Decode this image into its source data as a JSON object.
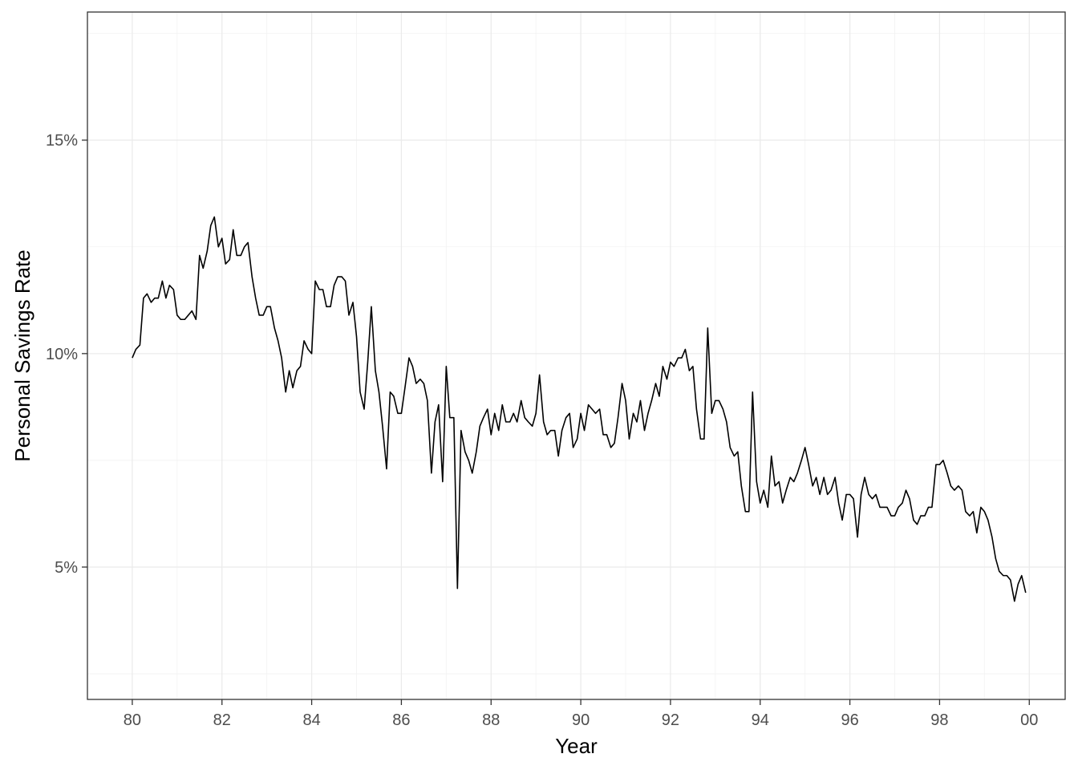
{
  "chart_data": {
    "type": "line",
    "title": "",
    "xlabel": "Year",
    "ylabel": "Personal Savings Rate",
    "xlim": [
      1979.0,
      2000.8
    ],
    "ylim": [
      1.9,
      18.0
    ],
    "grid": true,
    "legend": "none",
    "x_ticks": [
      {
        "value": 1980,
        "label": "80"
      },
      {
        "value": 1982,
        "label": "82"
      },
      {
        "value": 1984,
        "label": "84"
      },
      {
        "value": 1986,
        "label": "86"
      },
      {
        "value": 1988,
        "label": "88"
      },
      {
        "value": 1990,
        "label": "90"
      },
      {
        "value": 1992,
        "label": "92"
      },
      {
        "value": 1994,
        "label": "94"
      },
      {
        "value": 1996,
        "label": "96"
      },
      {
        "value": 1998,
        "label": "98"
      },
      {
        "value": 2000,
        "label": "00"
      }
    ],
    "y_ticks": [
      {
        "value": 5,
        "label": "5%"
      },
      {
        "value": 10,
        "label": "10%"
      },
      {
        "value": 15,
        "label": "15%"
      }
    ],
    "series": [
      {
        "color": "#000000",
        "x": [
          1980.0,
          1980.08,
          1980.17,
          1980.25,
          1980.33,
          1980.42,
          1980.5,
          1980.58,
          1980.67,
          1980.75,
          1980.83,
          1980.92,
          1981.0,
          1981.08,
          1981.17,
          1981.25,
          1981.33,
          1981.42,
          1981.5,
          1981.58,
          1981.67,
          1981.75,
          1981.83,
          1981.92,
          1982.0,
          1982.08,
          1982.17,
          1982.25,
          1982.33,
          1982.42,
          1982.5,
          1982.58,
          1982.67,
          1982.75,
          1982.83,
          1982.92,
          1983.0,
          1983.08,
          1983.17,
          1983.25,
          1983.33,
          1983.42,
          1983.5,
          1983.58,
          1983.67,
          1983.75,
          1983.83,
          1983.92,
          1984.0,
          1984.08,
          1984.17,
          1984.25,
          1984.33,
          1984.42,
          1984.5,
          1984.58,
          1984.67,
          1984.75,
          1984.83,
          1984.92,
          1985.0,
          1985.08,
          1985.17,
          1985.25,
          1985.33,
          1985.42,
          1985.5,
          1985.58,
          1985.67,
          1985.75,
          1985.83,
          1985.92,
          1986.0,
          1986.08,
          1986.17,
          1986.25,
          1986.33,
          1986.42,
          1986.5,
          1986.58,
          1986.67,
          1986.75,
          1986.83,
          1986.92,
          1987.0,
          1987.08,
          1987.17,
          1987.25,
          1987.33,
          1987.42,
          1987.5,
          1987.58,
          1987.67,
          1987.75,
          1987.83,
          1987.92,
          1988.0,
          1988.08,
          1988.17,
          1988.25,
          1988.33,
          1988.42,
          1988.5,
          1988.58,
          1988.67,
          1988.75,
          1988.83,
          1988.92,
          1989.0,
          1989.08,
          1989.17,
          1989.25,
          1989.33,
          1989.42,
          1989.5,
          1989.58,
          1989.67,
          1989.75,
          1989.83,
          1989.92,
          1990.0,
          1990.08,
          1990.17,
          1990.25,
          1990.33,
          1990.42,
          1990.5,
          1990.58,
          1990.67,
          1990.75,
          1990.83,
          1990.92,
          1991.0,
          1991.08,
          1991.17,
          1991.25,
          1991.33,
          1991.42,
          1991.5,
          1991.58,
          1991.67,
          1991.75,
          1991.83,
          1991.92,
          1992.0,
          1992.08,
          1992.17,
          1992.25,
          1992.33,
          1992.42,
          1992.5,
          1992.58,
          1992.67,
          1992.75,
          1992.83,
          1992.92,
          1993.0,
          1993.08,
          1993.17,
          1993.25,
          1993.33,
          1993.42,
          1993.5,
          1993.58,
          1993.67,
          1993.75,
          1993.83,
          1993.92,
          1994.0,
          1994.08,
          1994.17,
          1994.25,
          1994.33,
          1994.42,
          1994.5,
          1994.58,
          1994.67,
          1994.75,
          1994.83,
          1994.92,
          1995.0,
          1995.08,
          1995.17,
          1995.25,
          1995.33,
          1995.42,
          1995.5,
          1995.58,
          1995.67,
          1995.75,
          1995.83,
          1995.92,
          1996.0,
          1996.08,
          1996.17,
          1996.25,
          1996.33,
          1996.42,
          1996.5,
          1996.58,
          1996.67,
          1996.75,
          1996.83,
          1996.92,
          1997.0,
          1997.08,
          1997.17,
          1997.25,
          1997.33,
          1997.42,
          1997.5,
          1997.58,
          1997.67,
          1997.75,
          1997.83,
          1997.92,
          1998.0,
          1998.08,
          1998.17,
          1998.25,
          1998.33,
          1998.42,
          1998.5,
          1998.58,
          1998.67,
          1998.75,
          1998.83,
          1998.92,
          1999.0,
          1999.08,
          1999.17,
          1999.25,
          1999.33,
          1999.42,
          1999.5,
          1999.58,
          1999.67,
          1999.75,
          1999.83,
          1999.92
        ],
        "y": [
          9.9,
          10.1,
          10.2,
          11.3,
          11.4,
          11.2,
          11.3,
          11.3,
          11.7,
          11.3,
          11.6,
          11.5,
          10.9,
          10.8,
          10.8,
          10.9,
          11.0,
          10.8,
          12.3,
          12.0,
          12.4,
          13.0,
          13.2,
          12.5,
          12.7,
          12.1,
          12.2,
          12.9,
          12.3,
          12.3,
          12.5,
          12.6,
          11.8,
          11.3,
          10.9,
          10.9,
          11.1,
          11.1,
          10.6,
          10.3,
          9.9,
          9.1,
          9.6,
          9.2,
          9.6,
          9.7,
          10.3,
          10.1,
          10.0,
          11.7,
          11.5,
          11.5,
          11.1,
          11.1,
          11.6,
          11.8,
          11.8,
          11.7,
          10.9,
          11.2,
          10.4,
          9.1,
          8.7,
          9.8,
          11.1,
          9.6,
          9.1,
          8.3,
          7.3,
          9.1,
          9.0,
          8.6,
          8.6,
          9.2,
          9.9,
          9.7,
          9.3,
          9.4,
          9.3,
          8.9,
          7.2,
          8.4,
          8.8,
          7.0,
          9.7,
          8.5,
          8.5,
          4.5,
          8.2,
          7.7,
          7.5,
          7.2,
          7.7,
          8.3,
          8.5,
          8.7,
          8.1,
          8.6,
          8.2,
          8.8,
          8.4,
          8.4,
          8.6,
          8.4,
          8.9,
          8.5,
          8.4,
          8.3,
          8.6,
          9.5,
          8.4,
          8.1,
          8.2,
          8.2,
          7.6,
          8.2,
          8.5,
          8.6,
          7.8,
          8.0,
          8.6,
          8.2,
          8.8,
          8.7,
          8.6,
          8.7,
          8.1,
          8.1,
          7.8,
          7.9,
          8.5,
          9.3,
          8.9,
          8.0,
          8.6,
          8.4,
          8.9,
          8.2,
          8.6,
          8.9,
          9.3,
          9.0,
          9.7,
          9.4,
          9.8,
          9.7,
          9.9,
          9.9,
          10.1,
          9.6,
          9.7,
          8.7,
          8.0,
          8.0,
          10.6,
          8.6,
          8.9,
          8.9,
          8.7,
          8.4,
          7.8,
          7.6,
          7.7,
          6.9,
          6.3,
          6.3,
          9.1,
          7.0,
          6.5,
          6.8,
          6.4,
          7.6,
          6.9,
          7.0,
          6.5,
          6.8,
          7.1,
          7.0,
          7.2,
          7.5,
          7.8,
          7.4,
          6.9,
          7.1,
          6.7,
          7.1,
          6.7,
          6.8,
          7.1,
          6.5,
          6.1,
          6.7,
          6.7,
          6.6,
          5.7,
          6.7,
          7.1,
          6.7,
          6.6,
          6.7,
          6.4,
          6.4,
          6.4,
          6.2,
          6.2,
          6.4,
          6.5,
          6.8,
          6.6,
          6.1,
          6.0,
          6.2,
          6.2,
          6.4,
          6.4,
          7.4,
          7.4,
          7.5,
          7.2,
          6.9,
          6.8,
          6.9,
          6.8,
          6.3,
          6.2,
          6.3,
          5.8,
          6.4,
          6.3,
          6.1,
          5.7,
          5.2,
          4.9,
          4.8,
          4.8,
          4.7,
          4.2,
          4.6,
          4.8,
          4.4
        ]
      }
    ]
  }
}
